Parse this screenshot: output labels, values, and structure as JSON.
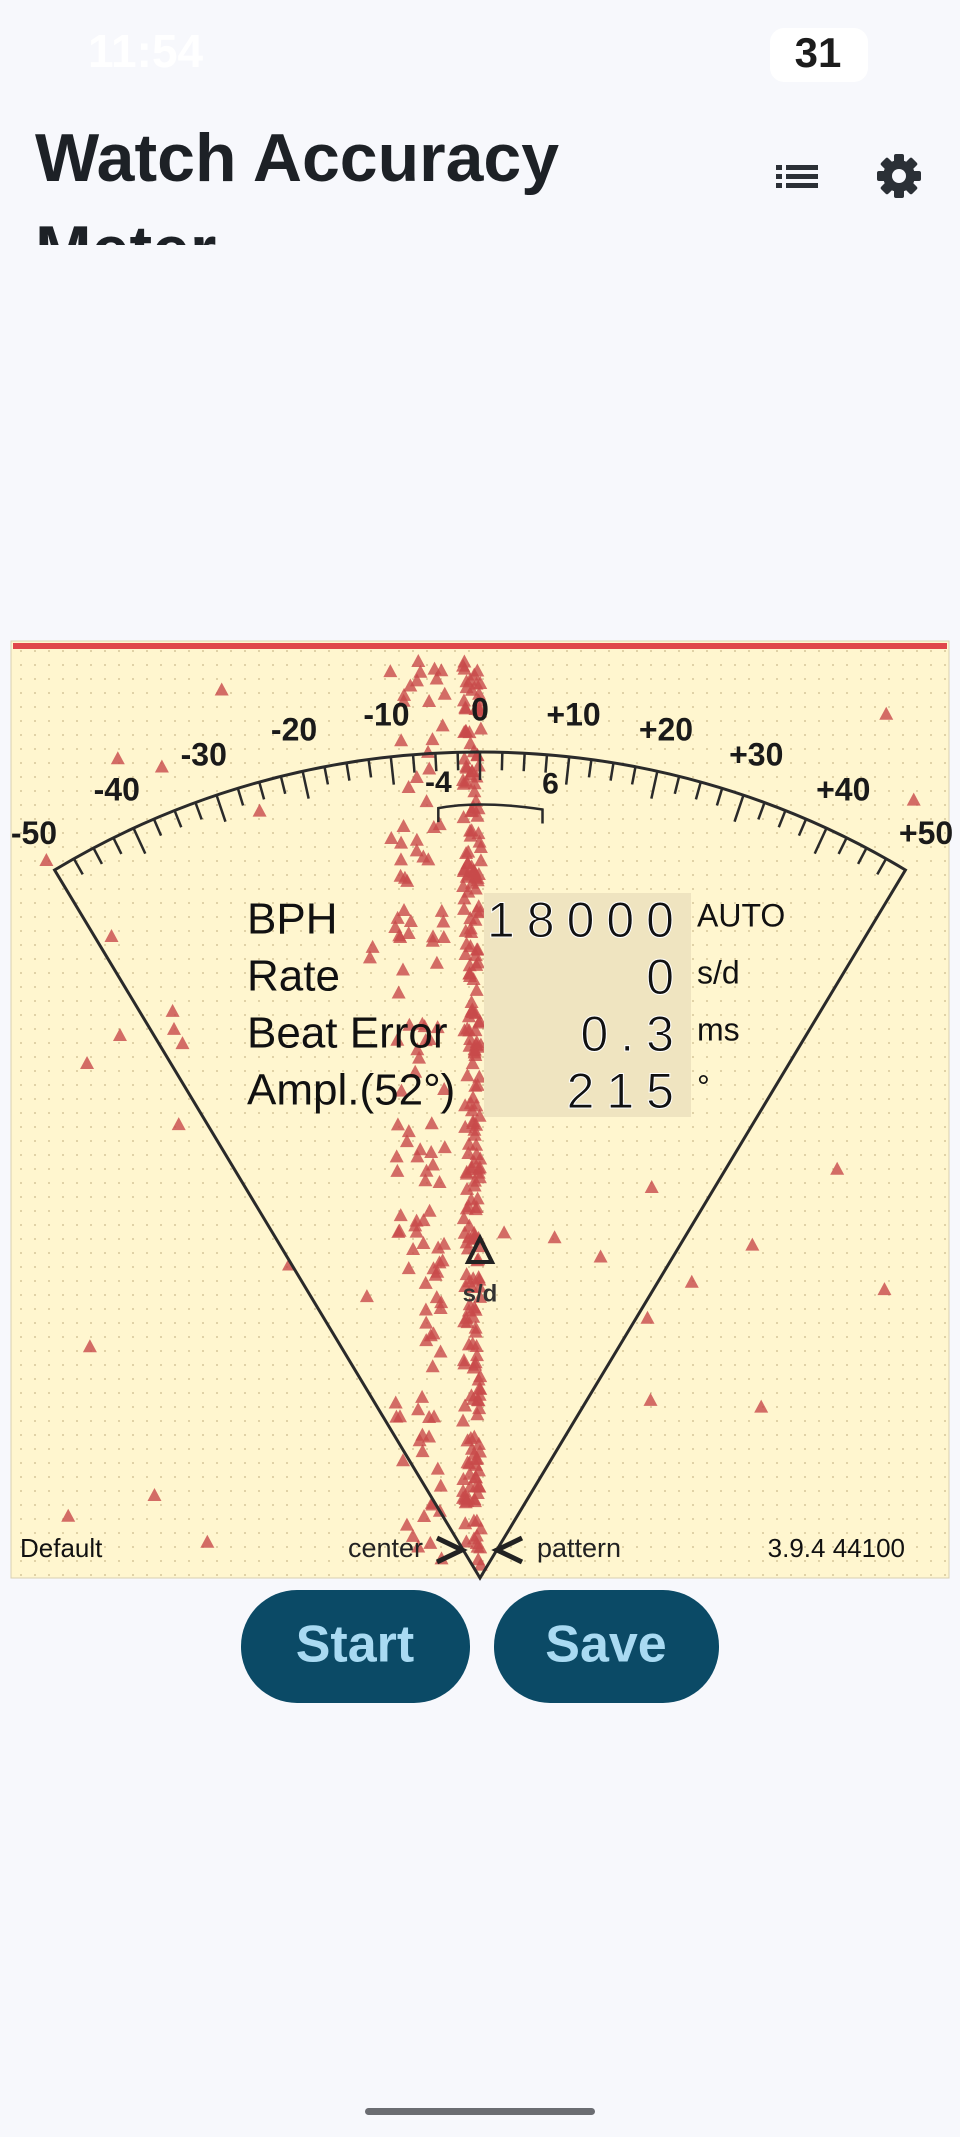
{
  "status_bar": {
    "time": "11:54",
    "battery": "31"
  },
  "header": {
    "title": "Watch Accuracy Meter"
  },
  "dial": {
    "scale_labels": [
      "-50",
      "-40",
      "-30",
      "-20",
      "-10",
      "0",
      "+10",
      "+20",
      "+30",
      "+40",
      "+50"
    ],
    "bracket_labels": [
      "-4",
      "6"
    ],
    "pointer_unit": "s/d"
  },
  "readings": [
    {
      "label": "BPH",
      "value": "18000",
      "unit": "AUTO"
    },
    {
      "label": "Rate",
      "value": "0",
      "unit": "s/d"
    },
    {
      "label": "Beat Error",
      "value": "0.3",
      "unit": "ms"
    },
    {
      "label": "Ampl.(52°)",
      "value": "215",
      "unit": "°"
    }
  ],
  "footer": {
    "profile": "Default",
    "left": "center",
    "right": "pattern",
    "version": "3.9.4 44100"
  },
  "buttons": [
    "Start",
    "Save"
  ]
}
